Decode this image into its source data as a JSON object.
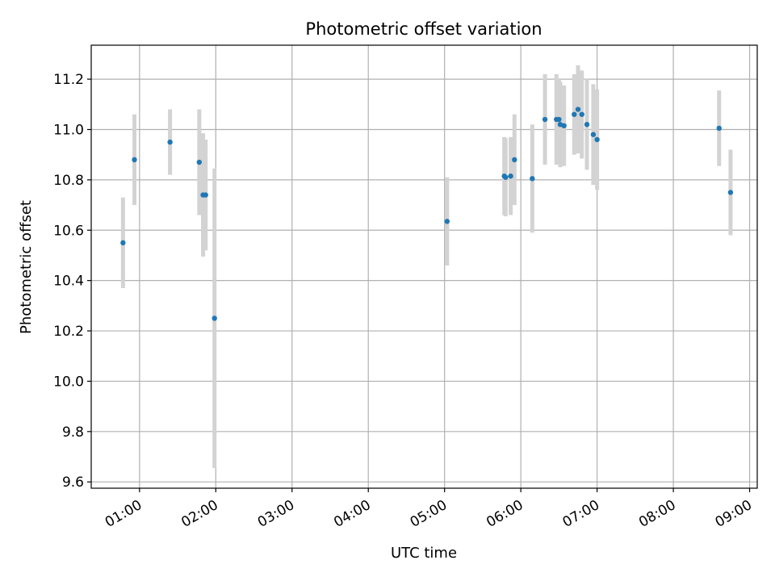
{
  "chart_data": {
    "type": "scatter",
    "title": "Photometric offset variation",
    "xlabel": "UTC time",
    "ylabel": "Photometric offset",
    "x_unit": "UTC time (HH:MM)",
    "xlim": [
      "00:22",
      "09:06"
    ],
    "ylim": [
      9.575,
      11.335
    ],
    "grid": true,
    "legend": "none",
    "xticks": [
      "01:00",
      "02:00",
      "03:00",
      "04:00",
      "05:00",
      "06:00",
      "07:00",
      "08:00",
      "09:00"
    ],
    "yticks": [
      "9.6",
      "9.8",
      "10.0",
      "10.2",
      "10.4",
      "10.6",
      "10.8",
      "11.0",
      "11.2"
    ],
    "colors": {
      "point": "#1f77b4",
      "errorbar": "#d3d3d3",
      "grid": "#b0b0b0"
    },
    "points": [
      {
        "x": "00:47",
        "y": 10.55,
        "err": 0.18
      },
      {
        "x": "00:56",
        "y": 10.88,
        "err": 0.18
      },
      {
        "x": "01:24",
        "y": 10.95,
        "err": 0.13
      },
      {
        "x": "01:47",
        "y": 10.87,
        "err": 0.21
      },
      {
        "x": "01:50",
        "y": 10.74,
        "err": 0.245
      },
      {
        "x": "01:52",
        "y": 10.74,
        "err": 0.22
      },
      {
        "x": "01:59",
        "y": 10.25,
        "err": 0.595
      },
      {
        "x": "05:02",
        "y": 10.635,
        "err": 0.175
      },
      {
        "x": "05:47",
        "y": 10.815,
        "err": 0.155
      },
      {
        "x": "05:48",
        "y": 10.81,
        "err": 0.155
      },
      {
        "x": "05:52",
        "y": 10.815,
        "err": 0.155
      },
      {
        "x": "05:55",
        "y": 10.88,
        "err": 0.18
      },
      {
        "x": "06:09",
        "y": 10.805,
        "err": 0.215
      },
      {
        "x": "06:19",
        "y": 11.04,
        "err": 0.18
      },
      {
        "x": "06:28",
        "y": 11.04,
        "err": 0.18
      },
      {
        "x": "06:30",
        "y": 11.04,
        "err": 0.16
      },
      {
        "x": "06:31",
        "y": 11.02,
        "err": 0.17
      },
      {
        "x": "06:34",
        "y": 11.015,
        "err": 0.16
      },
      {
        "x": "06:42",
        "y": 11.06,
        "err": 0.16
      },
      {
        "x": "06:45",
        "y": 11.08,
        "err": 0.175
      },
      {
        "x": "06:48",
        "y": 11.06,
        "err": 0.175
      },
      {
        "x": "06:52",
        "y": 11.02,
        "err": 0.18
      },
      {
        "x": "06:57",
        "y": 10.98,
        "err": 0.2
      },
      {
        "x": "07:00",
        "y": 10.96,
        "err": 0.2
      },
      {
        "x": "08:36",
        "y": 11.005,
        "err": 0.15
      },
      {
        "x": "08:45",
        "y": 10.75,
        "err": 0.17
      }
    ]
  }
}
